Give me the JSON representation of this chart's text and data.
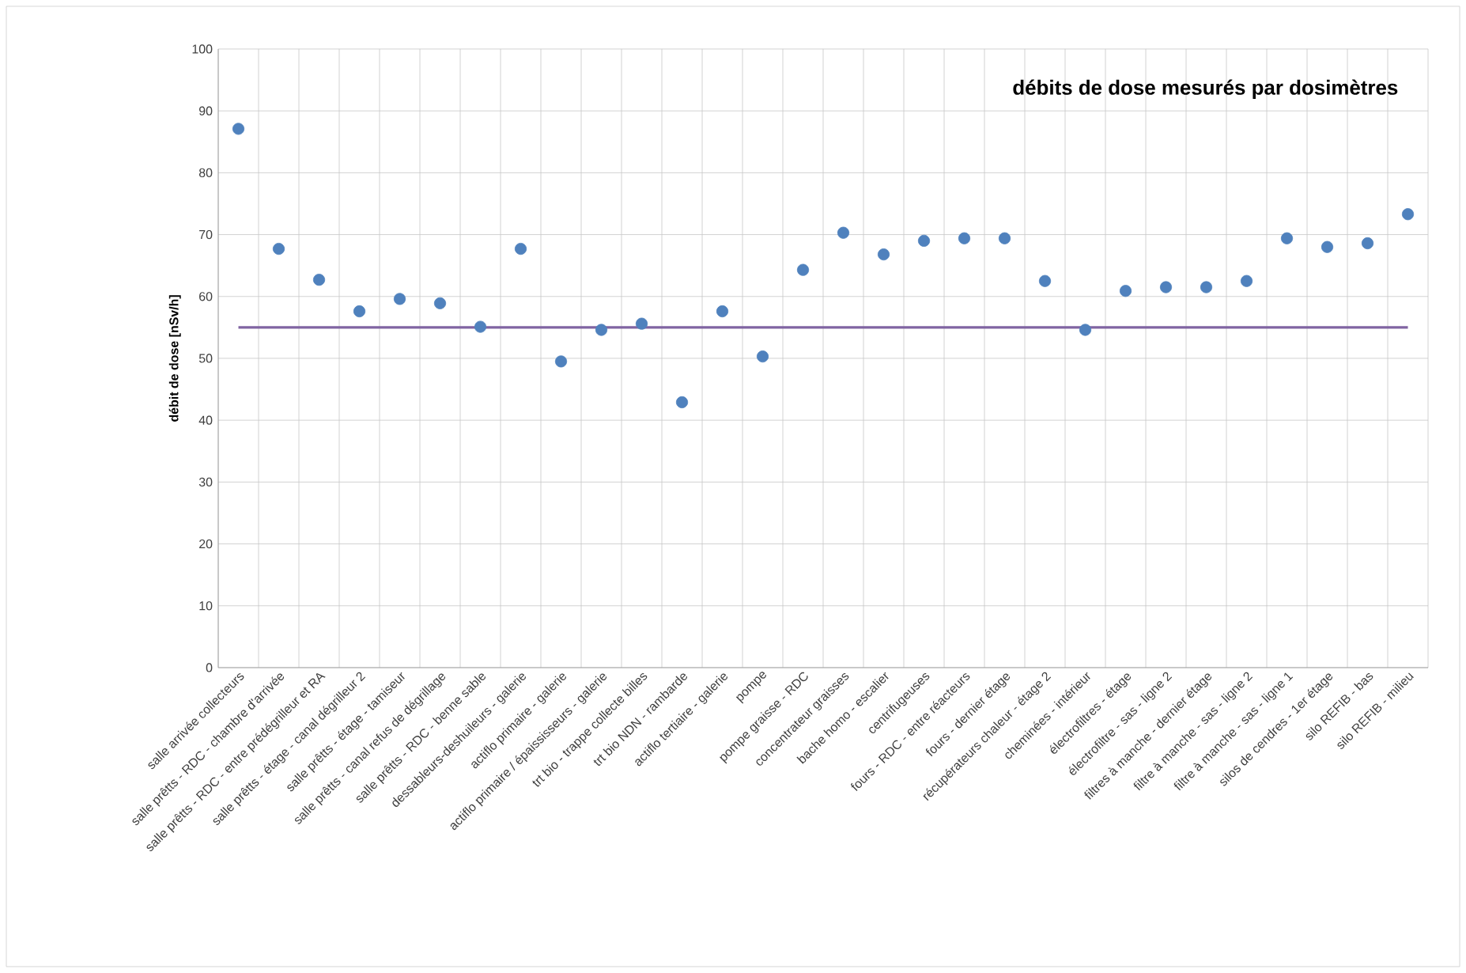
{
  "chart_data": {
    "type": "scatter",
    "title": "**débits de dose mesurés par dosimètres**",
    "ylabel": "**débit de dose  [nSv/h]**",
    "categories": [
      "salle arrivée collecteurs",
      "salle prêtts - RDC - chambre d'arrivée",
      "salle prêtts - RDC - entre prédégrilleur et RA",
      "salle prêtts - étage -  canal dégrilleur 2",
      "salle prêtts - étage - tamiseur",
      "salle prêtts - canal refus de dégrillage",
      "salle prêtts - RDC - benne sable",
      "dessableurs-deshuileurs - galerie",
      "actiflo primaire - galerie",
      "actiflo primaire / épaississeurs - galerie",
      "trt bio - trappe collecte billes",
      "trt bio NDN - rambarde",
      "actiflo tertiaire - galerie",
      "pompe",
      "pompe graisse - RDC",
      "concentrateur graisses",
      "bache homo - escalier",
      "centrifugeuses",
      "fours - RDC - entre réacteurs",
      "fours - dernier étage",
      "récupérateurs chaleur - étage 2",
      "cheminées - intérieur",
      "électrofiltres - étage",
      "électrofiltre - sas - ligne 2",
      "filtres à manche - dernier étage",
      "filtre à manche - sas - ligne 2",
      "filtre à manche - sas - ligne 1",
      "silos de cendres - 1er étage",
      "silo REFIB - bas",
      "silo REFIB - milieu"
    ],
    "series": [
      {
        "color": "#4f81bd",
        "values": [
          87.1,
          67.7,
          62.7,
          57.6,
          59.6,
          58.9,
          55.1,
          67.7,
          49.5,
          54.6,
          55.6,
          42.9,
          57.6,
          50.3,
          64.3,
          70.3,
          66.8,
          69.0,
          69.4,
          69.4,
          62.5,
          54.6,
          60.9,
          61.5,
          61.5,
          62.5,
          69.4,
          68.0,
          68.6,
          73.3
        ]
      }
    ],
    "ylim": [
      0,
      100
    ],
    "yticks": [
      0,
      10,
      20,
      30,
      40,
      50,
      60,
      70,
      80,
      90,
      100
    ],
    "grid": true,
    "marker": "circle",
    "ref_lines": [
      {
        "axis": "y",
        "value": 55,
        "color": "#8064a2"
      }
    ]
  }
}
